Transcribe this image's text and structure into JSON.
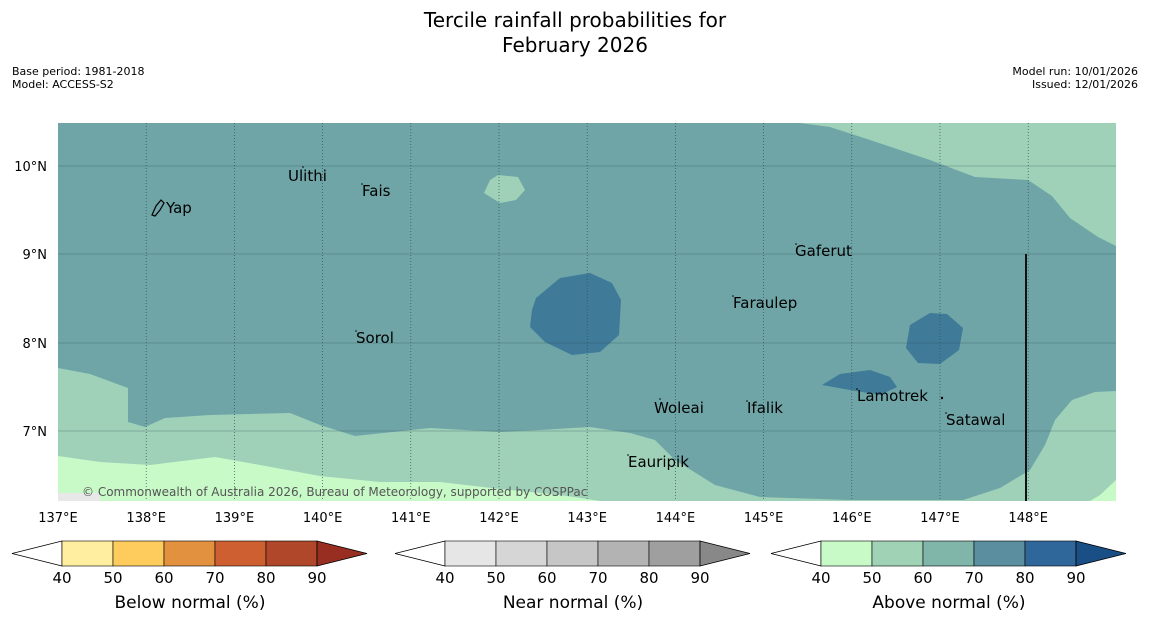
{
  "title": {
    "line1": "Tercile rainfall probabilities for",
    "line2": "February 2026"
  },
  "meta": {
    "base_period": "Base period: 1981-2018",
    "model": "Model: ACCESS-S2",
    "model_run": "Model run: 10/01/2026",
    "issued": "Issued: 12/01/2026"
  },
  "map": {
    "lon_ticks": [
      "137°E",
      "138°E",
      "139°E",
      "140°E",
      "141°E",
      "142°E",
      "143°E",
      "144°E",
      "145°E",
      "146°E",
      "147°E",
      "148°E"
    ],
    "lat_ticks": [
      "10°N",
      "9°N",
      "8°N",
      "7°N"
    ],
    "places": [
      "Yap",
      "Ulithi",
      "Fais",
      "Sorol",
      "Gaferut",
      "Faraulep",
      "Woleai",
      "Ifalik",
      "Lamotrek",
      "Satawal",
      "Eauripik"
    ],
    "copyright": "© Commonwealth of Australia 2026, Bureau of Meteorology, supported by COSPPac"
  },
  "colorbars": [
    {
      "label": "Below normal (%)",
      "ticks": [
        "40",
        "50",
        "60",
        "70",
        "80",
        "90"
      ],
      "colors": [
        "#ffffff",
        "#ffeda0",
        "#fecc5c",
        "#e2913f",
        "#cd5f31",
        "#b0472a",
        "#982e22"
      ]
    },
    {
      "label": "Near normal (%)",
      "ticks": [
        "40",
        "50",
        "60",
        "70",
        "80",
        "90"
      ],
      "colors": [
        "#ffffff",
        "#e6e6e6",
        "#d6d6d6",
        "#c6c6c6",
        "#b3b3b3",
        "#9f9f9f",
        "#888888"
      ]
    },
    {
      "label": "Above normal (%)",
      "ticks": [
        "40",
        "50",
        "60",
        "70",
        "80",
        "90"
      ],
      "colors": [
        "#ffffff",
        "#c8fac8",
        "#a0d2b6",
        "#80b5aa",
        "#5b8e9e",
        "#30679b",
        "#1a4f86"
      ]
    }
  ],
  "palette": {
    "above_50": "#9fd1b9",
    "above_60": "#6fa5a7",
    "above_70": "#3f7a98",
    "below_light": "#c8fac8"
  }
}
